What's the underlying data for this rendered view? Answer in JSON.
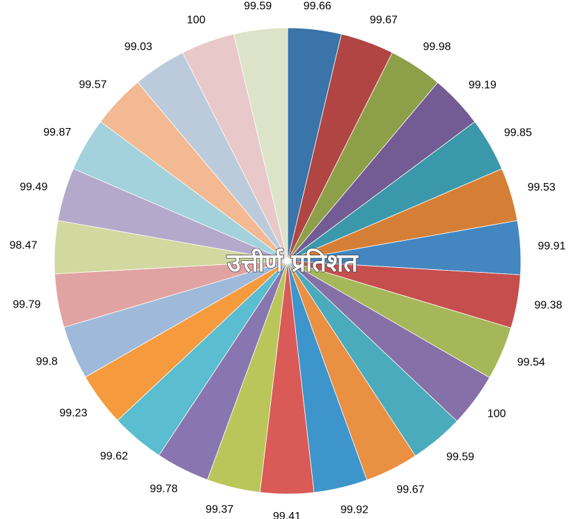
{
  "chart_data": {
    "type": "pie",
    "title": "उत्तीर्ण प्रतिशत",
    "categories": [
      null,
      null,
      null,
      null,
      null,
      null,
      null,
      null,
      null,
      null,
      null,
      null,
      null,
      null,
      null,
      null,
      null,
      null,
      null,
      null,
      null,
      null,
      null,
      null,
      null,
      null,
      null
    ],
    "values": [
      99.66,
      99.67,
      99.98,
      99.19,
      99.85,
      99.53,
      99.91,
      99.38,
      99.54,
      100,
      99.59,
      99.67,
      99.92,
      99.41,
      99.37,
      99.78,
      99.62,
      99.23,
      99.8,
      99.79,
      98.47,
      99.49,
      99.87,
      99.57,
      99.03,
      100,
      99.59
    ],
    "colors": [
      "#3a74a8",
      "#b04543",
      "#8e9f4a",
      "#735b93",
      "#3a98aa",
      "#d57f36",
      "#4486c0",
      "#c64e4c",
      "#a6b75a",
      "#8670a8",
      "#4aabbd",
      "#ea9043",
      "#3d95cb",
      "#d95a56",
      "#bac65a",
      "#8976b0",
      "#5abdd0",
      "#f59b3e",
      "#9fb9da",
      "#e0a3a1",
      "#d1d9a0",
      "#b5a9cb",
      "#a3d1dc",
      "#f3b992",
      "#bccbdc",
      "#e8c8c8",
      "#dde3c9"
    ]
  }
}
